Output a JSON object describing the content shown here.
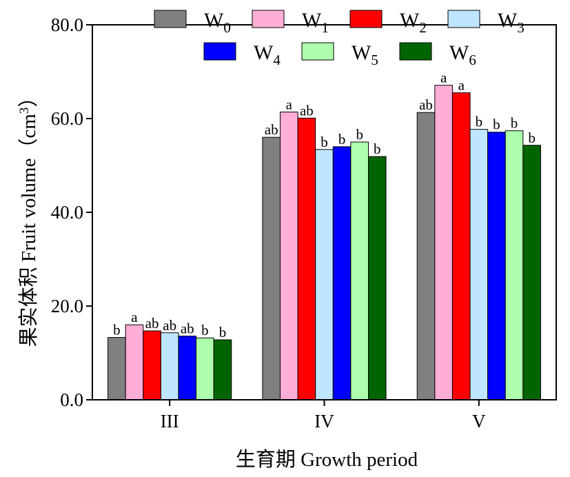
{
  "chart_data": {
    "type": "bar",
    "xlabel": "生育期 Growth period",
    "ylabel_main": "果实体积 Fruit volume（cm",
    "ylabel_sup": "3",
    "ylabel_end": "）",
    "ylim": [
      0,
      80
    ],
    "yticks": [
      "0.0",
      "20.0",
      "40.0",
      "60.0",
      "80.0"
    ],
    "categories": [
      "III",
      "IV",
      "V"
    ],
    "legend_placement": "top-right",
    "grid": false,
    "series": [
      {
        "name": "W",
        "sub": "0",
        "color": "#808080",
        "values": [
          13.3,
          56.0,
          61.3
        ],
        "labels": [
          "b",
          "ab",
          "ab"
        ]
      },
      {
        "name": "W",
        "sub": "1",
        "color": "#ffaed7",
        "values": [
          16.0,
          61.4,
          67.1
        ],
        "labels": [
          "a",
          "a",
          "a"
        ]
      },
      {
        "name": "W",
        "sub": "2",
        "color": "#ff0000",
        "values": [
          14.7,
          60.1,
          65.5
        ],
        "labels": [
          "ab",
          "ab",
          "a"
        ]
      },
      {
        "name": "W",
        "sub": "3",
        "color": "#bfe6ff",
        "values": [
          14.3,
          53.4,
          57.7
        ],
        "labels": [
          "ab",
          "b",
          "b"
        ]
      },
      {
        "name": "W",
        "sub": "4",
        "color": "#0000ff",
        "values": [
          13.6,
          54.0,
          57.1
        ],
        "labels": [
          "ab",
          "b",
          "b"
        ]
      },
      {
        "name": "W",
        "sub": "5",
        "color": "#adffad",
        "values": [
          13.2,
          55.0,
          57.4
        ],
        "labels": [
          "b",
          "b",
          "b"
        ]
      },
      {
        "name": "W",
        "sub": "6",
        "color": "#006400",
        "values": [
          12.8,
          51.9,
          54.3
        ],
        "labels": [
          "b",
          "b",
          "b"
        ]
      }
    ]
  }
}
